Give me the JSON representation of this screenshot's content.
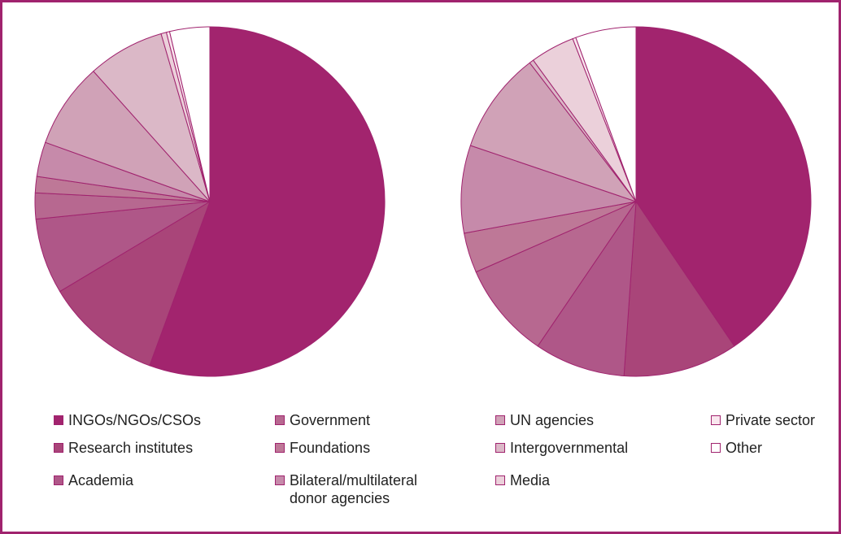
{
  "chart_data": {
    "type": "pie",
    "categories": [
      "INGOs/NGOs/CSOs",
      "Research institutes",
      "Academia",
      "Government",
      "Foundations",
      "Bilateral/multilateral donor agencies",
      "UN agencies",
      "Intergovernmental",
      "Media",
      "Private sector",
      "Other"
    ],
    "colors": [
      "#a2246e",
      "#a94579",
      "#af5788",
      "#b76890",
      "#be7897",
      "#c68aaa",
      "#d0a2b7",
      "#dbb8c7",
      "#ebd0da",
      "#f9e6ee",
      "#ffffff"
    ],
    "pies": [
      {
        "values": [
          55.6,
          10.8,
          7.0,
          2.4,
          1.5,
          3.2,
          7.9,
          7.1,
          0.5,
          0.3,
          3.7
        ]
      },
      {
        "values": [
          40.5,
          10.6,
          8.4,
          8.9,
          3.7,
          8.1,
          9.4,
          0.4,
          4.1,
          0.3,
          5.6
        ]
      }
    ]
  },
  "legend": {
    "items": [
      {
        "label": "INGOs/NGOs/CSOs",
        "color": "#a2246e"
      },
      {
        "label": "Research institutes",
        "color": "#a94579"
      },
      {
        "label": "Academia",
        "color": "#af5788"
      },
      {
        "label": "Government",
        "color": "#b76890"
      },
      {
        "label": "Foundations",
        "color": "#be7897"
      },
      {
        "label": "Bilateral/multilateral donor agencies",
        "color": "#c68aaa"
      },
      {
        "label": "UN agencies",
        "color": "#d0a2b7"
      },
      {
        "label": "Intergovernmental",
        "color": "#dbb8c7"
      },
      {
        "label": "Media",
        "color": "#ebd0da"
      },
      {
        "label": "Private sector",
        "color": "#f9e6ee"
      },
      {
        "label": "Other",
        "color": "#ffffff"
      }
    ]
  }
}
